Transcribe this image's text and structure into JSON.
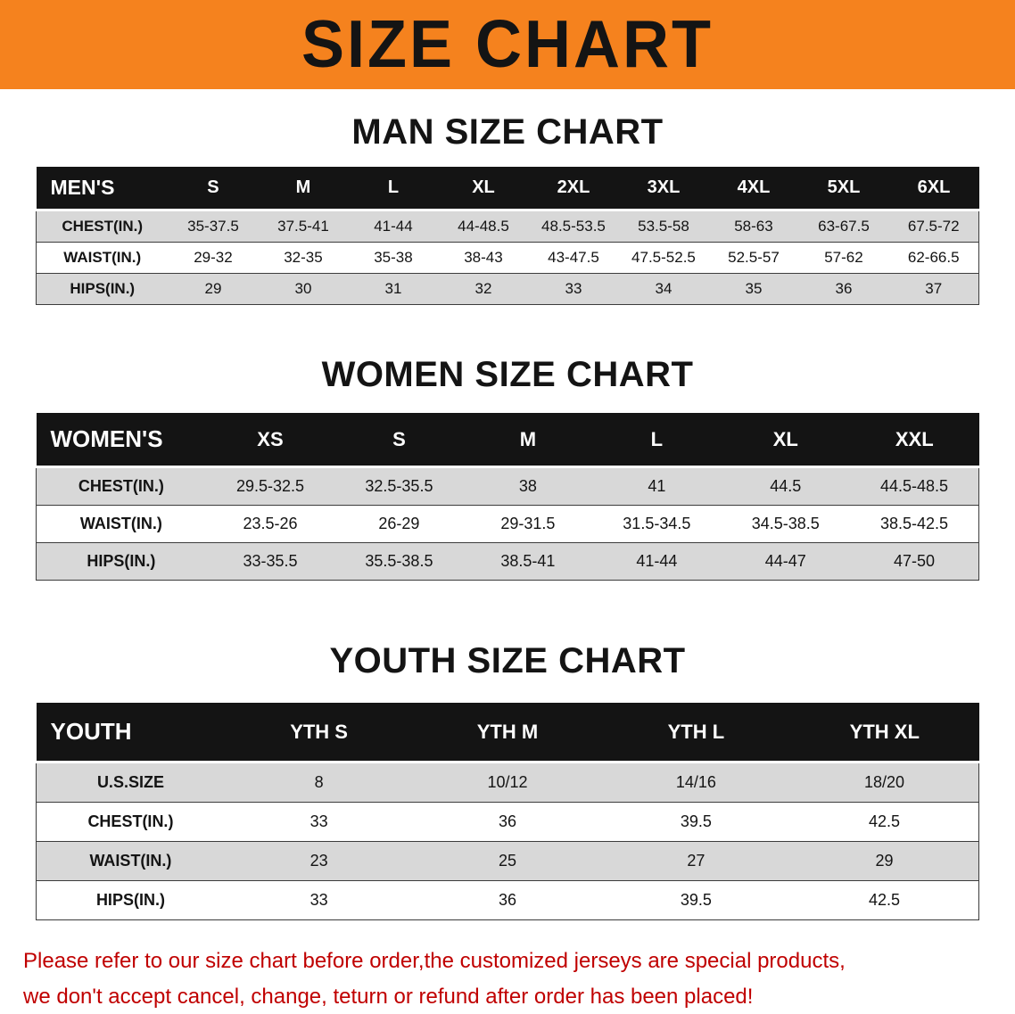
{
  "banner": {
    "title": "SIZE CHART",
    "background_color": "#F5821E",
    "text_color": "#141414"
  },
  "sections": [
    {
      "id": "men",
      "heading": "MAN SIZE CHART",
      "table": {
        "header": [
          "MEN'S",
          "S",
          "M",
          "L",
          "XL",
          "2XL",
          "3XL",
          "4XL",
          "5XL",
          "6XL"
        ],
        "rows": [
          [
            "CHEST(IN.)",
            "35-37.5",
            "37.5-41",
            "41-44",
            "44-48.5",
            "48.5-53.5",
            "53.5-58",
            "58-63",
            "63-67.5",
            "67.5-72"
          ],
          [
            "WAIST(IN.)",
            "29-32",
            "32-35",
            "35-38",
            "38-43",
            "43-47.5",
            "47.5-52.5",
            "52.5-57",
            "57-62",
            "62-66.5"
          ],
          [
            "HIPS(IN.)",
            "29",
            "30",
            "31",
            "32",
            "33",
            "34",
            "35",
            "36",
            "37"
          ]
        ]
      }
    },
    {
      "id": "women",
      "heading": "WOMEN SIZE CHART",
      "table": {
        "header": [
          "WOMEN'S",
          "XS",
          "S",
          "M",
          "L",
          "XL",
          "XXL"
        ],
        "rows": [
          [
            "CHEST(IN.)",
            "29.5-32.5",
            "32.5-35.5",
            "38",
            "41",
            "44.5",
            "44.5-48.5"
          ],
          [
            "WAIST(IN.)",
            "23.5-26",
            "26-29",
            "29-31.5",
            "31.5-34.5",
            "34.5-38.5",
            "38.5-42.5"
          ],
          [
            "HIPS(IN.)",
            "33-35.5",
            "35.5-38.5",
            "38.5-41",
            "41-44",
            "44-47",
            "47-50"
          ]
        ]
      }
    },
    {
      "id": "youth",
      "heading": "YOUTH SIZE CHART",
      "table": {
        "header": [
          "YOUTH",
          "YTH S",
          "YTH M",
          "YTH L",
          "YTH XL"
        ],
        "rows": [
          [
            "U.S.SIZE",
            "8",
            "10/12",
            "14/16",
            "18/20"
          ],
          [
            "CHEST(IN.)",
            "33",
            "36",
            "39.5",
            "42.5"
          ],
          [
            "WAIST(IN.)",
            "23",
            "25",
            "27",
            "29"
          ],
          [
            "HIPS(IN.)",
            "33",
            "36",
            "39.5",
            "42.5"
          ]
        ]
      }
    }
  ],
  "disclaimer": {
    "color": "#C00000",
    "line1": "Please refer to our size chart before order,the customized jerseys are special products,",
    "line2": "we don't accept cancel, change, teturn or refund after order has been placed!"
  }
}
